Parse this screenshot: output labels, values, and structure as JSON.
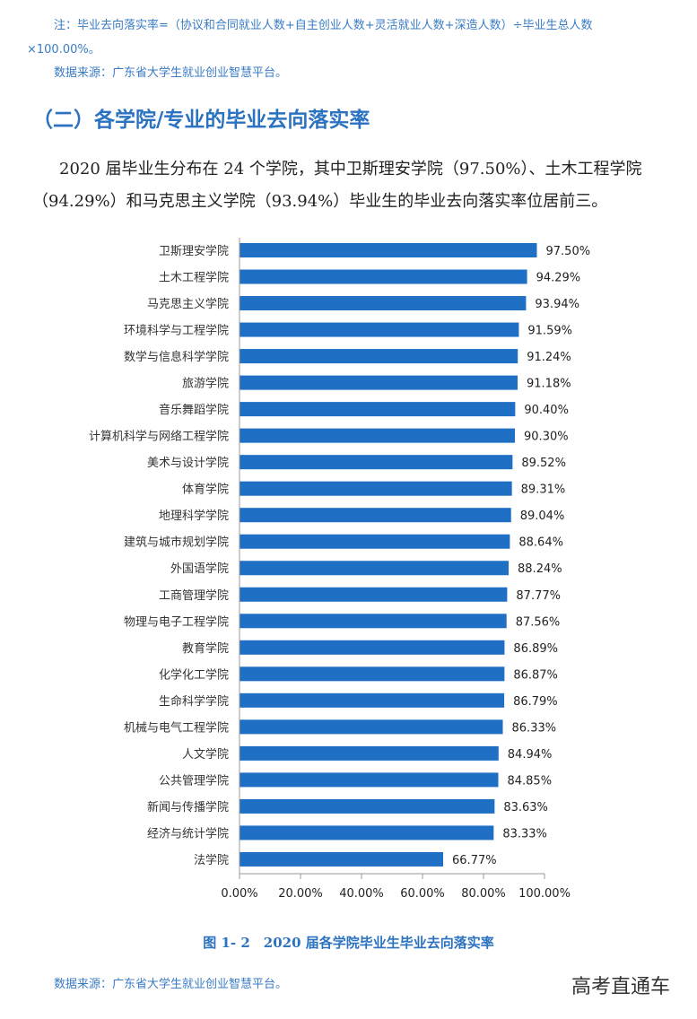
{
  "notes": {
    "formula_line1": "注：毕业去向落实率=（协议和合同就业人数+自主创业人数+灵活就业人数+深造人数）÷毕业生总人数",
    "formula_line2": "×100.00%。",
    "source_top": "数据来源：广东省大学生就业创业智慧平台。"
  },
  "section_title": "（二）各学院/专业的毕业去向落实率",
  "paragraph": {
    "line1": "2020 届毕业生分布在 24 个学院，其中卫斯理安学院（97.50%）、土木工程学院",
    "line2": "（94.29%）和马克思主义学院（93.94%）毕业生的毕业去向落实率位居前三。"
  },
  "chart_data": {
    "type": "bar",
    "orientation": "horizontal",
    "categories": [
      "卫斯理安学院",
      "土木工程学院",
      "马克思主义学院",
      "环境科学与工程学院",
      "数学与信息科学学院",
      "旅游学院",
      "音乐舞蹈学院",
      "计算机科学与网络工程学院",
      "美术与设计学院",
      "体育学院",
      "地理科学学院",
      "建筑与城市规划学院",
      "外国语学院",
      "工商管理学院",
      "物理与电子工程学院",
      "教育学院",
      "化学化工学院",
      "生命科学学院",
      "机械与电气工程学院",
      "人文学院",
      "公共管理学院",
      "新闻与传播学院",
      "经济与统计学院",
      "法学院"
    ],
    "values": [
      97.5,
      94.29,
      93.94,
      91.59,
      91.24,
      91.18,
      90.4,
      90.3,
      89.52,
      89.31,
      89.04,
      88.64,
      88.24,
      87.77,
      87.56,
      86.89,
      86.87,
      86.79,
      86.33,
      84.94,
      84.85,
      83.63,
      83.33,
      66.77
    ],
    "data_labels": [
      "97.50%",
      "94.29%",
      "93.94%",
      "91.59%",
      "91.24%",
      "91.18%",
      "90.40%",
      "90.30%",
      "89.52%",
      "89.31%",
      "89.04%",
      "88.64%",
      "88.24%",
      "87.77%",
      "87.56%",
      "86.89%",
      "86.87%",
      "86.79%",
      "86.33%",
      "84.94%",
      "84.85%",
      "83.63%",
      "83.33%",
      "66.77%"
    ],
    "xlim": [
      0,
      100
    ],
    "xticks": [
      "0.00%",
      "20.00%",
      "40.00%",
      "60.00%",
      "80.00%",
      "100.00%"
    ],
    "grid": false,
    "bar_color": "#1f6fc5",
    "title": "图 1- 2　2020 届各学院毕业生毕业去向落实率"
  },
  "source_bottom": "数据来源：广东省大学生就业创业智慧平台。",
  "watermark": "高考直通车"
}
